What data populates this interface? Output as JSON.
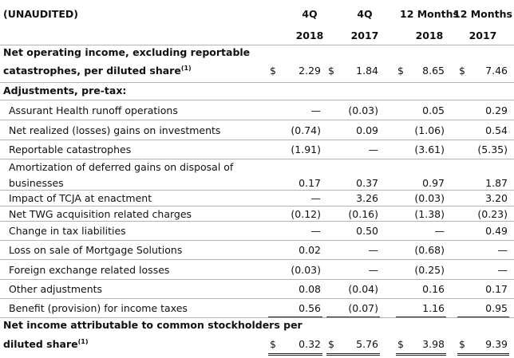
{
  "header": {
    "unaudited": "(UNAUDITED)",
    "columns": [
      {
        "period": "4Q",
        "year": "2018"
      },
      {
        "period": "4Q",
        "year": "2017"
      },
      {
        "period": "12 Months",
        "year": "2018"
      },
      {
        "period": "12 Months",
        "year": "2017"
      }
    ]
  },
  "section_noi": {
    "line1": "Net operating income, excluding reportable",
    "line2": "catastrophes, per diluted share",
    "footnote": "(1)",
    "currency": "$",
    "values": [
      "2.29",
      "1.84",
      "8.65",
      "7.46"
    ]
  },
  "section_adj": {
    "title": "Adjustments, pre-tax:"
  },
  "rows": [
    {
      "label": "Assurant Health runoff operations",
      "values": [
        "—",
        "(0.03)",
        "0.05",
        "0.29"
      ]
    },
    {
      "label": "Net realized (losses) gains on investments",
      "values": [
        "(0.74)",
        "0.09",
        "(1.06)",
        "0.54"
      ]
    },
    {
      "label": "Reportable catastrophes",
      "values": [
        "(1.91)",
        "—",
        "(3.61)",
        "(5.35)"
      ]
    },
    {
      "label": "Amortization of deferred gains on disposal of",
      "values": [
        "",
        "",
        "",
        ""
      ]
    },
    {
      "label": "businesses",
      "values": [
        "0.17",
        "0.37",
        "0.97",
        "1.87"
      ]
    },
    {
      "label": "Impact of TCJA at enactment",
      "values": [
        "—",
        "3.26",
        "(0.03)",
        "3.20"
      ]
    },
    {
      "label": "Net TWG acquisition related charges",
      "values": [
        "(0.12)",
        "(0.16)",
        "(1.38)",
        "(0.23)"
      ]
    },
    {
      "label": "Change in tax liabilities",
      "values": [
        "—",
        "0.50",
        "—",
        "0.49"
      ]
    },
    {
      "label": "Loss on sale of Mortgage Solutions",
      "values": [
        "0.02",
        "—",
        "(0.68)",
        "—"
      ]
    },
    {
      "label": "Foreign exchange related losses",
      "values": [
        "(0.03)",
        "—",
        "(0.25)",
        "—"
      ]
    },
    {
      "label": "Other adjustments",
      "values": [
        "0.08",
        "(0.04)",
        "0.16",
        "0.17"
      ]
    },
    {
      "label": "Benefit (provision) for income taxes",
      "values": [
        "0.56",
        "(0.07)",
        "1.16",
        "0.95"
      ]
    }
  ],
  "section_ni": {
    "line1": "Net income attributable to common stockholders per",
    "line2": "diluted share",
    "footnote": "(1)",
    "currency": "$",
    "values": [
      "0.32",
      "5.76",
      "3.98",
      "9.39"
    ]
  }
}
